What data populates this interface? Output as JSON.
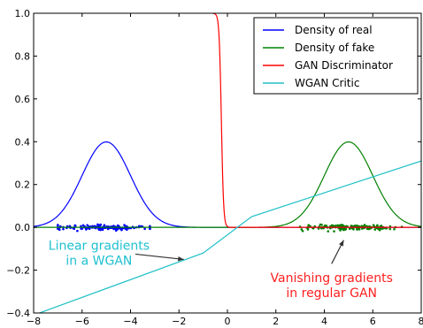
{
  "chart_data": {
    "type": "line",
    "title": "",
    "xlabel": "",
    "ylabel": "",
    "xlim": [
      -8,
      8
    ],
    "ylim": [
      -0.4,
      1.0
    ],
    "x_ticks": [
      -8,
      -6,
      -4,
      -2,
      0,
      2,
      4,
      6,
      8
    ],
    "y_ticks": [
      -0.4,
      -0.2,
      0.0,
      0.2,
      0.4,
      0.6,
      0.8,
      1.0
    ],
    "x_tick_labels": [
      "−8",
      "−6",
      "−4",
      "−2",
      "0",
      "2",
      "4",
      "6",
      "8"
    ],
    "y_tick_labels": [
      "−0.4",
      "−0.2",
      "0.0",
      "0.2",
      "0.4",
      "0.6",
      "0.8",
      "1.0"
    ],
    "grid": false,
    "legend_position": "top-right",
    "series": [
      {
        "name": "Density of real",
        "color": "#0000ff",
        "kind": "gaussian",
        "mean": -5,
        "std": 1,
        "x_range": [
          -8,
          8
        ]
      },
      {
        "name": "Density of fake",
        "color": "#008000",
        "kind": "gaussian",
        "mean": 5,
        "std": 1,
        "x_range": [
          -8,
          8
        ]
      },
      {
        "name": "GAN Discriminator",
        "color": "#ff0000",
        "kind": "sigmoid",
        "center": -0.25,
        "steepness": 22,
        "x_range": [
          -0.6,
          8
        ]
      },
      {
        "name": "WGAN Critic",
        "color": "#20c0c8",
        "kind": "polyline",
        "x": [
          -8,
          -1,
          1,
          8
        ],
        "y": [
          -0.41,
          -0.12,
          0.05,
          0.31
        ]
      }
    ],
    "scatter": [
      {
        "name": "real samples",
        "color": "#0000ff",
        "center": -5,
        "spread": 1,
        "x_min": -7,
        "x_max": -3.2,
        "count": 150
      },
      {
        "name": "fake samples",
        "color": "#008000",
        "center": 5,
        "spread": 1,
        "x_min": 3,
        "x_max": 7.2,
        "count": 150
      }
    ],
    "annotations": [
      {
        "lines": [
          "Linear gradients",
          "in a WGAN"
        ],
        "color": "#20c0d0",
        "text_at": [
          -5.3,
          -0.105
        ],
        "arrow_from": [
          -3.8,
          -0.125
        ],
        "arrow_to": [
          -1.8,
          -0.15
        ]
      },
      {
        "lines": [
          "Vanishing gradients",
          "in regular GAN"
        ],
        "color": "#ff2020",
        "text_at": [
          4.3,
          -0.255
        ],
        "arrow_from": [
          4.3,
          -0.17
        ],
        "arrow_to": [
          4.8,
          -0.06
        ]
      }
    ]
  }
}
